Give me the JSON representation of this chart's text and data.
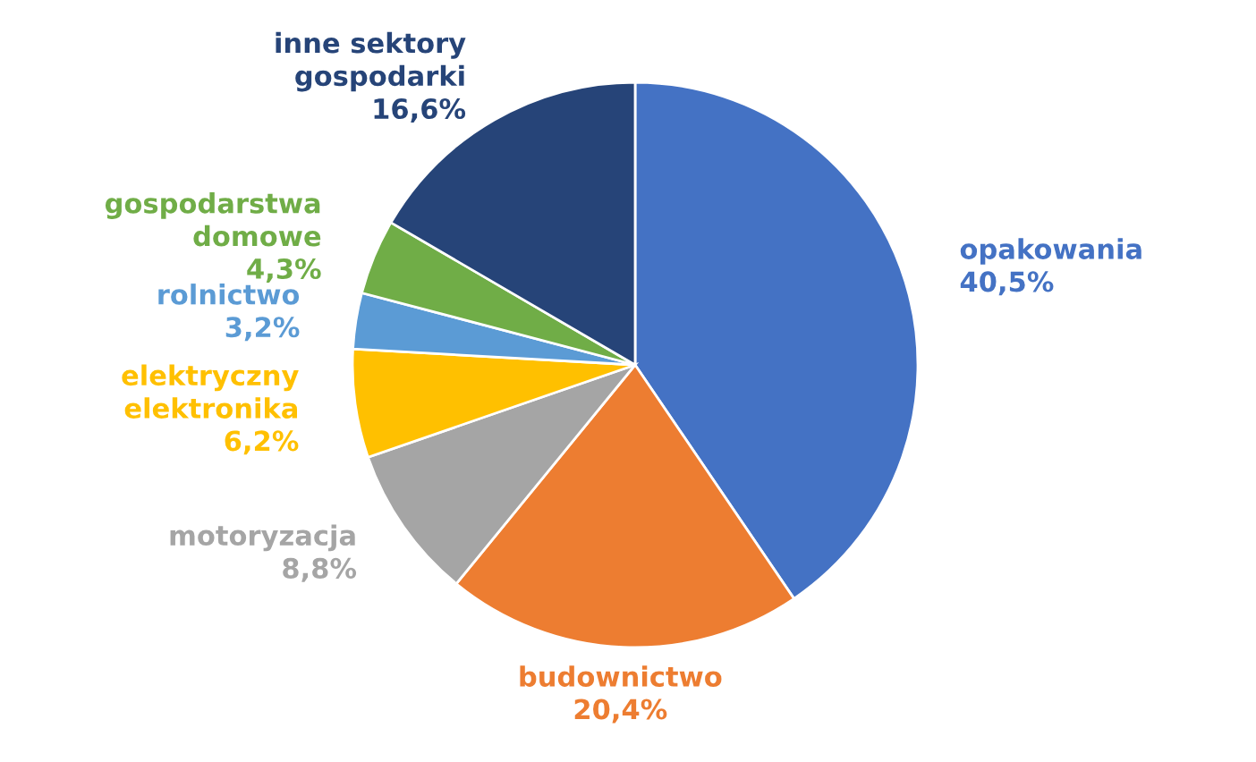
{
  "chart_data": {
    "type": "pie",
    "categories": [
      "opakowania",
      "budownictwo",
      "motoryzacja",
      "elektryczny\nelektronika",
      "rolnictwo",
      "gospodarstwa\ndomowe",
      "inne sektory\ngospodarki"
    ],
    "values": [
      40.5,
      20.4,
      8.8,
      6.2,
      3.2,
      4.3,
      16.6
    ],
    "value_labels": [
      "40,5%",
      "20,4%",
      "8,8%",
      "6,2%",
      "3,2%",
      "4,3%",
      "16,6%"
    ],
    "colors": [
      "#4472c4",
      "#ed7d31",
      "#a5a5a5",
      "#ffc000",
      "#5b9bd5",
      "#70ad47",
      "#264478"
    ]
  }
}
